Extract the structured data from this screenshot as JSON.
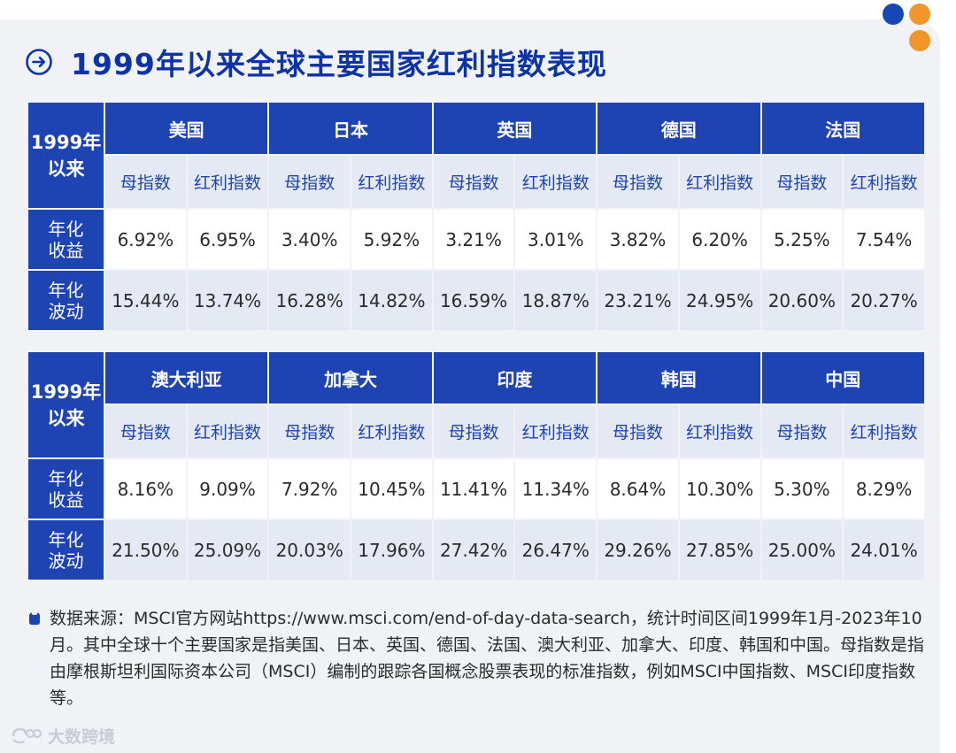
{
  "title": "1999年以来全球主要国家红利指数表现",
  "colors": {
    "primary": "#1e44b3",
    "title": "#0d34a6",
    "header_light": "#e4e9f4",
    "background": "#f0f2f6",
    "dot_blue": "#1746b5",
    "dot_orange": "#f0962a"
  },
  "icons": {
    "title_icon": "arrow-right-circle-icon",
    "note_icon": "bullet-icon",
    "watermark_icon": "logo-icon"
  },
  "tables": [
    {
      "corner": [
        "1999年",
        "以来"
      ],
      "sub_headers": [
        "母指数",
        "红利指数"
      ],
      "row_labels": {
        "returns": [
          "年化",
          "收益"
        ],
        "volatility": [
          "年化",
          "波动"
        ]
      },
      "countries": [
        {
          "name": "美国",
          "returns": [
            "6.92%",
            "6.95%"
          ],
          "volatility": [
            "15.44%",
            "13.74%"
          ]
        },
        {
          "name": "日本",
          "returns": [
            "3.40%",
            "5.92%"
          ],
          "volatility": [
            "16.28%",
            "14.82%"
          ]
        },
        {
          "name": "英国",
          "returns": [
            "3.21%",
            "3.01%"
          ],
          "volatility": [
            "16.59%",
            "18.87%"
          ]
        },
        {
          "name": "德国",
          "returns": [
            "3.82%",
            "6.20%"
          ],
          "volatility": [
            "23.21%",
            "24.95%"
          ]
        },
        {
          "name": "法国",
          "returns": [
            "5.25%",
            "7.54%"
          ],
          "volatility": [
            "20.60%",
            "20.27%"
          ]
        }
      ]
    },
    {
      "corner": [
        "1999年",
        "以来"
      ],
      "sub_headers": [
        "母指数",
        "红利指数"
      ],
      "row_labels": {
        "returns": [
          "年化",
          "收益"
        ],
        "volatility": [
          "年化",
          "波动"
        ]
      },
      "countries": [
        {
          "name": "澳大利亚",
          "returns": [
            "8.16%",
            "9.09%"
          ],
          "volatility": [
            "21.50%",
            "25.09%"
          ]
        },
        {
          "name": "加拿大",
          "returns": [
            "7.92%",
            "10.45%"
          ],
          "volatility": [
            "20.03%",
            "17.96%"
          ]
        },
        {
          "name": "印度",
          "returns": [
            "11.41%",
            "11.34%"
          ],
          "volatility": [
            "27.42%",
            "26.47%"
          ]
        },
        {
          "name": "韩国",
          "returns": [
            "8.64%",
            "10.30%"
          ],
          "volatility": [
            "29.26%",
            "27.85%"
          ]
        },
        {
          "name": "中国",
          "returns": [
            "5.30%",
            "8.29%"
          ],
          "volatility": [
            "25.00%",
            "24.01%"
          ]
        }
      ]
    }
  ],
  "footnote": "数据来源：MSCI官方网站https://www.msci.com/end-of-day-data-search，统计时间区间1999年1月-2023年10月。其中全球十个主要国家是指美国、日本、英国、德国、法国、澳大利亚、加拿大、印度、韩国和中国。母指数是指由摩根斯坦利国际资本公司（MSCI）编制的跟踪各国概念股票表现的标准指数，例如MSCI中国指数、MSCI印度指数等。",
  "watermark": "大数跨境"
}
